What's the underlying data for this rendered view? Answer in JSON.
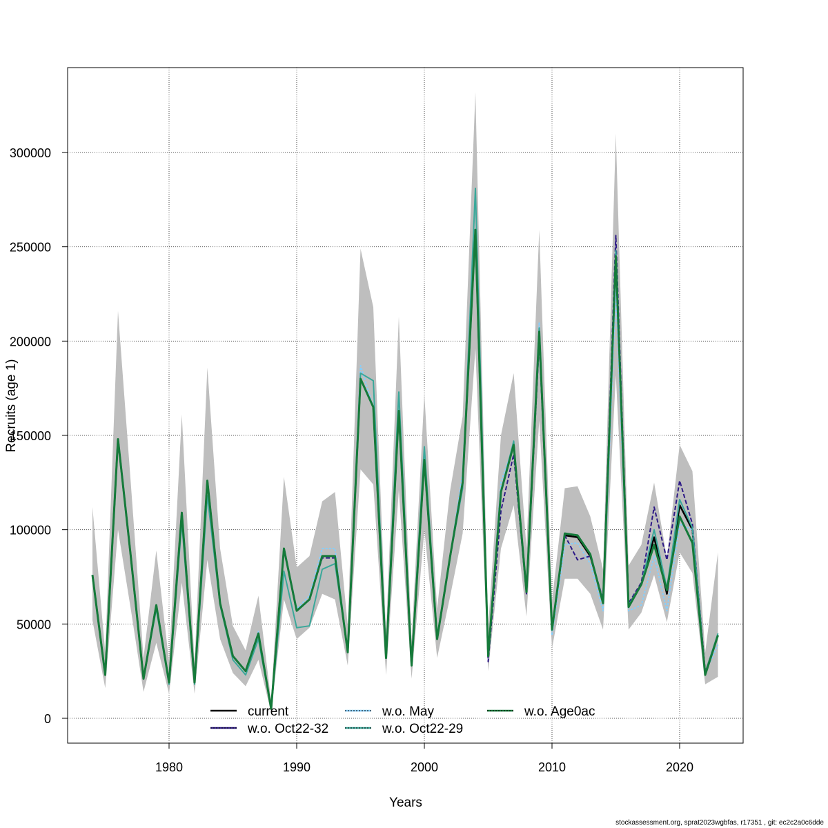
{
  "chart_data": {
    "type": "line",
    "title": "",
    "xlabel": "Years",
    "ylabel": "Recruits (age 1)",
    "xlim": [
      1972,
      2025
    ],
    "ylim": [
      -13000,
      345000
    ],
    "x_ticks": [
      1980,
      1990,
      2000,
      2010,
      2020
    ],
    "y_ticks": [
      0,
      50000,
      100000,
      150000,
      200000,
      250000,
      300000
    ],
    "grid": true,
    "legend_position": "bottom-center",
    "x": [
      1974,
      1975,
      1976,
      1977,
      1978,
      1979,
      1980,
      1981,
      1982,
      1983,
      1984,
      1985,
      1986,
      1987,
      1988,
      1989,
      1990,
      1991,
      1992,
      1993,
      1994,
      1995,
      1996,
      1997,
      1998,
      1999,
      2000,
      2001,
      2002,
      2003,
      2004,
      2005,
      2006,
      2007,
      2008,
      2009,
      2010,
      2011,
      2012,
      2013,
      2014,
      2015,
      2016,
      2017,
      2018,
      2019,
      2020,
      2021,
      2022,
      2023
    ],
    "confidence_band": {
      "name": "current 95% CI",
      "color": "#bebebe",
      "upper": [
        112000,
        35000,
        216000,
        125000,
        32000,
        89000,
        30000,
        161000,
        29000,
        186000,
        90000,
        49000,
        36000,
        65000,
        9000,
        128000,
        80000,
        86000,
        115000,
        120000,
        49000,
        249000,
        218000,
        45000,
        213000,
        41000,
        172000,
        58000,
        120000,
        160000,
        332000,
        48000,
        150000,
        183000,
        90000,
        259000,
        62000,
        122000,
        123000,
        107000,
        79000,
        310000,
        81000,
        92000,
        125000,
        85000,
        145000,
        131000,
        35000,
        88000
      ],
      "lower": [
        52000,
        16000,
        100000,
        58000,
        14000,
        40000,
        13000,
        72000,
        13000,
        84000,
        42000,
        24000,
        17000,
        31000,
        3000,
        63000,
        42000,
        48000,
        66000,
        63000,
        28000,
        132000,
        124000,
        23000,
        121000,
        21000,
        100000,
        32000,
        64000,
        98000,
        196000,
        25000,
        90000,
        113000,
        54000,
        158000,
        37000,
        74000,
        74000,
        66000,
        47000,
        182000,
        47000,
        56000,
        76000,
        51000,
        88000,
        77000,
        18000,
        22000
      ]
    },
    "series": [
      {
        "name": "current",
        "color": "#000000",
        "dash": "",
        "values": [
          76000,
          23000,
          148000,
          86000,
          21000,
          60000,
          19000,
          109000,
          19000,
          126000,
          61000,
          33000,
          25000,
          45000,
          5000,
          90000,
          57000,
          63000,
          86000,
          86000,
          35000,
          180000,
          165000,
          32000,
          163000,
          28000,
          137000,
          42000,
          85000,
          125000,
          259000,
          33000,
          120000,
          145000,
          67000,
          205000,
          47000,
          97000,
          96000,
          86000,
          62000,
          245000,
          60000,
          71000,
          96000,
          66000,
          113000,
          100000,
          24000,
          44000
        ]
      },
      {
        "name": "w.o. Oct22-32",
        "color": "#2e1a87",
        "dash": "6,3",
        "values": [
          76000,
          23000,
          148000,
          86000,
          21000,
          60000,
          19000,
          109000,
          19000,
          126000,
          61000,
          33000,
          25000,
          45000,
          5000,
          90000,
          57000,
          63000,
          85000,
          85000,
          35000,
          180000,
          165000,
          32000,
          163000,
          28000,
          137000,
          42000,
          85000,
          125000,
          259000,
          30000,
          110000,
          140000,
          66000,
          200000,
          47000,
          97000,
          84000,
          86000,
          63000,
          256000,
          61000,
          72000,
          112000,
          84000,
          126000,
          103000,
          24000,
          44000
        ]
      },
      {
        "name": "w.o. May",
        "color": "#87cefa",
        "dash": "3,2",
        "values": [
          76000,
          23000,
          148000,
          86000,
          21000,
          60000,
          19000,
          109000,
          19000,
          126000,
          61000,
          33000,
          25000,
          46000,
          5000,
          90000,
          58000,
          65000,
          90000,
          90000,
          35000,
          187000,
          165000,
          32000,
          163000,
          28000,
          137000,
          42000,
          85000,
          130000,
          259000,
          33000,
          125000,
          145000,
          67000,
          210000,
          44000,
          92000,
          93000,
          82000,
          57000,
          228000,
          57000,
          60000,
          86000,
          57000,
          103000,
          100000,
          24000,
          39000
        ]
      },
      {
        "name": "w.o. Oct22-29",
        "color": "#3aa89a",
        "dash": "",
        "values": [
          76000,
          23000,
          148000,
          86000,
          21000,
          58000,
          18000,
          104000,
          18000,
          118000,
          60000,
          31000,
          23000,
          42000,
          5000,
          78000,
          48000,
          49000,
          79000,
          82000,
          36000,
          183000,
          179000,
          33000,
          173000,
          29000,
          144000,
          43000,
          85000,
          122000,
          281000,
          33000,
          120000,
          147000,
          67000,
          207000,
          47000,
          98000,
          97000,
          87000,
          62000,
          248000,
          60000,
          71000,
          100000,
          69000,
          116000,
          101000,
          24000,
          45000
        ]
      },
      {
        "name": "w.o. Age0ac",
        "color": "#157a3a",
        "dash": "",
        "values": [
          76000,
          23000,
          148000,
          86000,
          21000,
          60000,
          19000,
          109000,
          19000,
          126000,
          61000,
          33000,
          25000,
          45000,
          5000,
          90000,
          57000,
          63000,
          86000,
          86000,
          35000,
          180000,
          165000,
          32000,
          163000,
          28000,
          137000,
          42000,
          85000,
          125000,
          259000,
          33000,
          120000,
          145000,
          67000,
          205000,
          47000,
          98000,
          97000,
          87000,
          61000,
          245000,
          59000,
          71000,
          92000,
          68000,
          107000,
          93000,
          23000,
          44000
        ]
      }
    ]
  },
  "footer": "stockassessment.org, sprat2023wgbfas, r17351 , git: ec2c2a0c6dde"
}
